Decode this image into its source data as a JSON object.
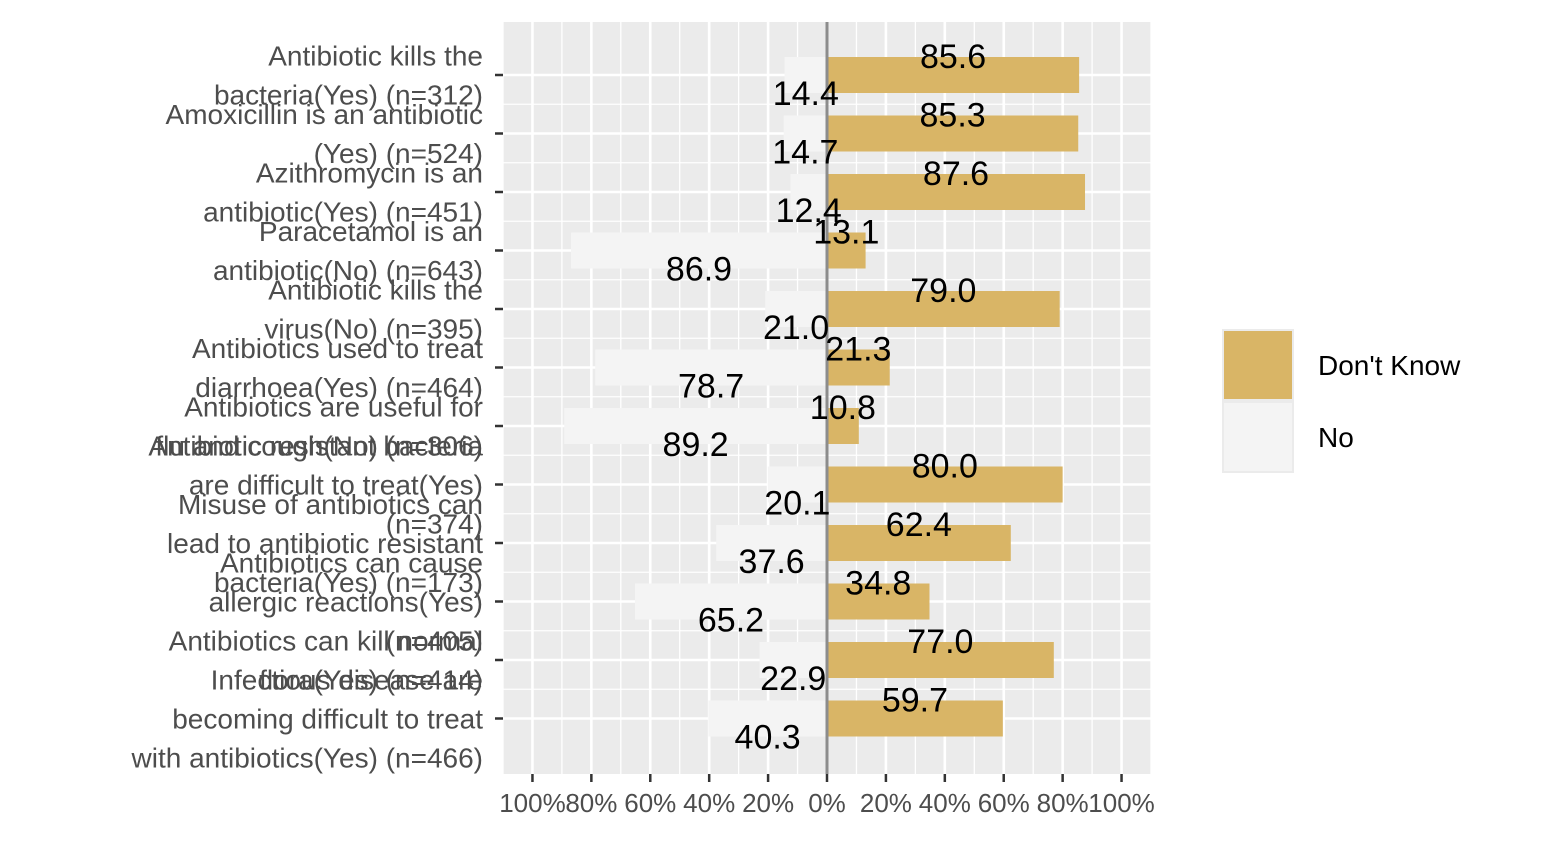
{
  "chart_data": {
    "type": "bar",
    "orientation": "horizontal",
    "layout": "diverging",
    "categories": [
      [
        "Antibiotic kills the",
        "bacteria(Yes) (n=312)"
      ],
      [
        "Amoxicillin is an antibiotic",
        "(Yes) (n=524)"
      ],
      [
        "Azithromycin is an",
        "antibiotic(Yes) (n=451)"
      ],
      [
        "Paracetamol is an",
        "antibiotic(No) (n=643)"
      ],
      [
        "Antibiotic kills the",
        "virus(No) (n=395)"
      ],
      [
        "Antibiotics used to treat",
        "diarrhoea(Yes) (n=464)"
      ],
      [
        "Antibiotics are useful for",
        "flu and cough(No) (n=306)"
      ],
      [
        "Antibiotic resistant bacteria",
        "are difficult to treat(Yes)",
        "(n=374)"
      ],
      [
        "Misuse of antibiotics can",
        "lead to antibiotic resistant",
        "bacteria(Yes) (n=173)"
      ],
      [
        "Antibiotics can cause",
        "allergic reactions(Yes)",
        "(n=405)"
      ],
      [
        "Antibiotics can kill normal",
        "flora(Yes) (n=414)"
      ],
      [
        "Infectious disease are",
        "becoming difficult to treat",
        "with antibiotics(Yes) (n=466)"
      ]
    ],
    "series": [
      {
        "name": "Don't Know",
        "side": "right",
        "color": "#D9B566",
        "values": [
          85.6,
          85.3,
          87.6,
          13.1,
          79.0,
          21.3,
          10.8,
          80.0,
          62.4,
          34.8,
          77.0,
          59.7
        ],
        "labels": [
          "85.6",
          "85.3",
          "87.6",
          "13.1",
          "79.0",
          "21.3",
          "10.8",
          "80.0",
          "62.4",
          "34.8",
          "77.0",
          "59.7"
        ]
      },
      {
        "name": "No",
        "side": "left",
        "color": "#F4F4F4",
        "values": [
          14.4,
          14.7,
          12.4,
          86.9,
          21.0,
          78.7,
          89.2,
          20.1,
          37.6,
          65.2,
          22.9,
          40.3
        ],
        "labels": [
          "14.4",
          "14.7",
          "12.4",
          "86.9",
          "21.0",
          "78.7",
          "89.2",
          "20.1",
          "37.6",
          "65.2",
          "22.9",
          "40.3"
        ]
      }
    ],
    "x_ticks": [
      -100,
      -80,
      -60,
      -40,
      -20,
      0,
      20,
      40,
      60,
      80,
      100
    ],
    "x_tick_labels": [
      "100%",
      "80%",
      "60%",
      "40%",
      "20%",
      "0%",
      "20%",
      "40%",
      "60%",
      "80%",
      "100%"
    ],
    "xlim": [
      -110,
      110
    ],
    "xlabel": "",
    "ylabel": "",
    "grid": true,
    "legend_position": "right",
    "legend": [
      {
        "label": "Don't Know",
        "color": "#D9B566"
      },
      {
        "label": "No",
        "color": "#F4F4F4"
      }
    ],
    "colors": {
      "panel": "#EBEBEB",
      "grid": "#FFFFFF",
      "zero_line": "#8C8C8C"
    }
  }
}
